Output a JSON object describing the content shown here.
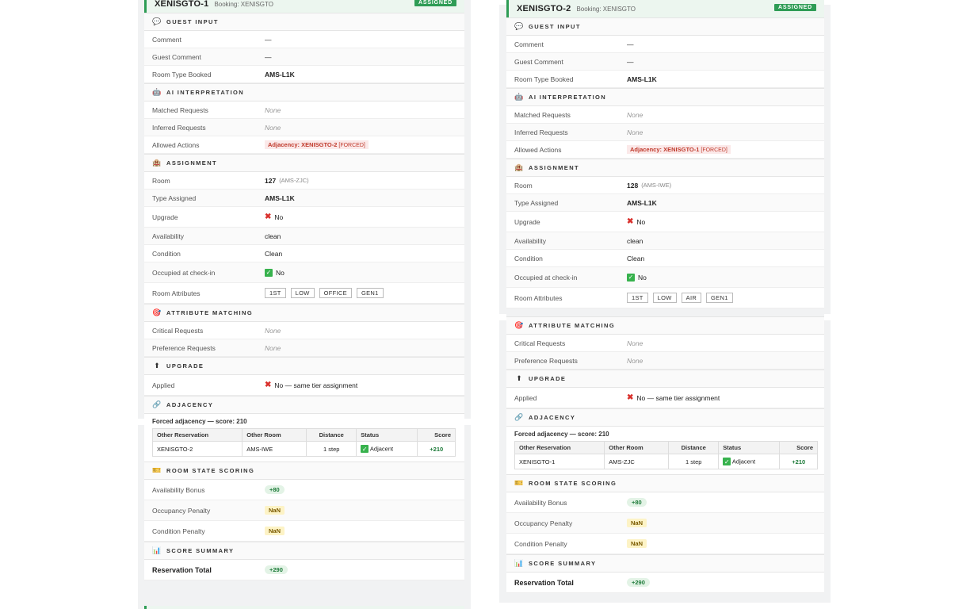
{
  "cards": [
    {
      "reservation_id": "XENISGTO-1",
      "booking": "Booking: XENISGTO",
      "status": "ASSIGNED",
      "guest_input": {
        "title": "GUEST INPUT",
        "comment_label": "Comment",
        "comment": "—",
        "guest_comment_label": "Guest Comment",
        "guest_comment": "—",
        "room_type_booked_label": "Room Type Booked",
        "room_type_booked": "AMS-L1K"
      },
      "ai": {
        "title": "AI INTERPRETATION",
        "matched_label": "Matched Requests",
        "matched": "None",
        "inferred_label": "Inferred Requests",
        "inferred": "None",
        "allowed_label": "Allowed Actions",
        "allowed_prefix": "Adjacency: XENISGTO-2",
        "allowed_tag": "[FORCED]"
      },
      "assignment": {
        "title": "ASSIGNMENT",
        "room_label": "Room",
        "room": "127",
        "room_code": "(AMS-ZJC)",
        "type_label": "Type Assigned",
        "type": "AMS-L1K",
        "upgrade_label": "Upgrade",
        "upgrade": "No",
        "availability_label": "Availability",
        "availability": "clean",
        "condition_label": "Condition",
        "condition": "Clean",
        "occupied_label": "Occupied at check-in",
        "occupied": "No",
        "attributes_label": "Room Attributes",
        "attributes": [
          "1ST",
          "LOW",
          "OFFICE",
          "GEN1"
        ]
      },
      "attribute_matching": {
        "title": "ATTRIBUTE MATCHING",
        "critical_label": "Critical Requests",
        "critical": "None",
        "preference_label": "Preference Requests",
        "preference": "None"
      },
      "upgrade": {
        "title": "UPGRADE",
        "applied_label": "Applied",
        "applied": "No — same tier assignment"
      },
      "adjacency": {
        "title": "ADJACENCY",
        "summary": "Forced adjacency — score: 210",
        "headers": [
          "Other Reservation",
          "Other Room",
          "Distance",
          "Status",
          "Score"
        ],
        "row": {
          "other_reservation": "XENISGTO-2",
          "other_room": "AMS-IWE",
          "distance": "1 step",
          "status": "Adjacent",
          "score": "+210"
        }
      },
      "room_state": {
        "title": "ROOM STATE SCORING",
        "availability_label": "Availability Bonus",
        "availability": "+80",
        "occupancy_label": "Occupancy Penalty",
        "occupancy": "NaN",
        "condition_label": "Condition Penalty",
        "condition": "NaN"
      },
      "score_summary": {
        "title": "SCORE SUMMARY",
        "total_label": "Reservation Total",
        "total": "+290"
      }
    },
    {
      "reservation_id": "XENISGTO-2",
      "booking": "Booking: XENISGTO",
      "status": "ASSIGNED",
      "guest_input": {
        "title": "GUEST INPUT",
        "comment_label": "Comment",
        "comment": "—",
        "guest_comment_label": "Guest Comment",
        "guest_comment": "—",
        "room_type_booked_label": "Room Type Booked",
        "room_type_booked": "AMS-L1K"
      },
      "ai": {
        "title": "AI INTERPRETATION",
        "matched_label": "Matched Requests",
        "matched": "None",
        "inferred_label": "Inferred Requests",
        "inferred": "None",
        "allowed_label": "Allowed Actions",
        "allowed_prefix": "Adjacency: XENISGTO-1",
        "allowed_tag": "[FORCED]"
      },
      "assignment": {
        "title": "ASSIGNMENT",
        "room_label": "Room",
        "room": "128",
        "room_code": "(AMS-IWE)",
        "type_label": "Type Assigned",
        "type": "AMS-L1K",
        "upgrade_label": "Upgrade",
        "upgrade": "No",
        "availability_label": "Availability",
        "availability": "clean",
        "condition_label": "Condition",
        "condition": "Clean",
        "occupied_label": "Occupied at check-in",
        "occupied": "No",
        "attributes_label": "Room Attributes",
        "attributes": [
          "1ST",
          "LOW",
          "AIR",
          "GEN1"
        ]
      },
      "attribute_matching": {
        "title": "ATTRIBUTE MATCHING",
        "critical_label": "Critical Requests",
        "critical": "None",
        "preference_label": "Preference Requests",
        "preference": "None"
      },
      "upgrade": {
        "title": "UPGRADE",
        "applied_label": "Applied",
        "applied": "No — same tier assignment"
      },
      "adjacency": {
        "title": "ADJACENCY",
        "summary": "Forced adjacency — score: 210",
        "headers": [
          "Other Reservation",
          "Other Room",
          "Distance",
          "Status",
          "Score"
        ],
        "row": {
          "other_reservation": "XENISGTO-1",
          "other_room": "AMS-ZJC",
          "distance": "1 step",
          "status": "Adjacent",
          "score": "+210"
        }
      },
      "room_state": {
        "title": "ROOM STATE SCORING",
        "availability_label": "Availability Bonus",
        "availability": "+80",
        "occupancy_label": "Occupancy Penalty",
        "occupancy": "NaN",
        "condition_label": "Condition Penalty",
        "condition": "NaN"
      },
      "score_summary": {
        "title": "SCORE SUMMARY",
        "total_label": "Reservation Total",
        "total": "+290"
      }
    }
  ],
  "icons": {
    "guest_input": "speech-bubble-icon",
    "ai": "robot-icon",
    "assignment": "hotel-icon",
    "attribute_matching": "target-icon",
    "upgrade": "up-arrow-icon",
    "adjacency": "link-icon",
    "room_state": "ticket-icon",
    "score_summary": "bar-chart-icon"
  },
  "colors": {
    "accent": "#2e9c55",
    "forced": "#c0392b",
    "error": "#d9302c",
    "success": "#37b24d"
  }
}
